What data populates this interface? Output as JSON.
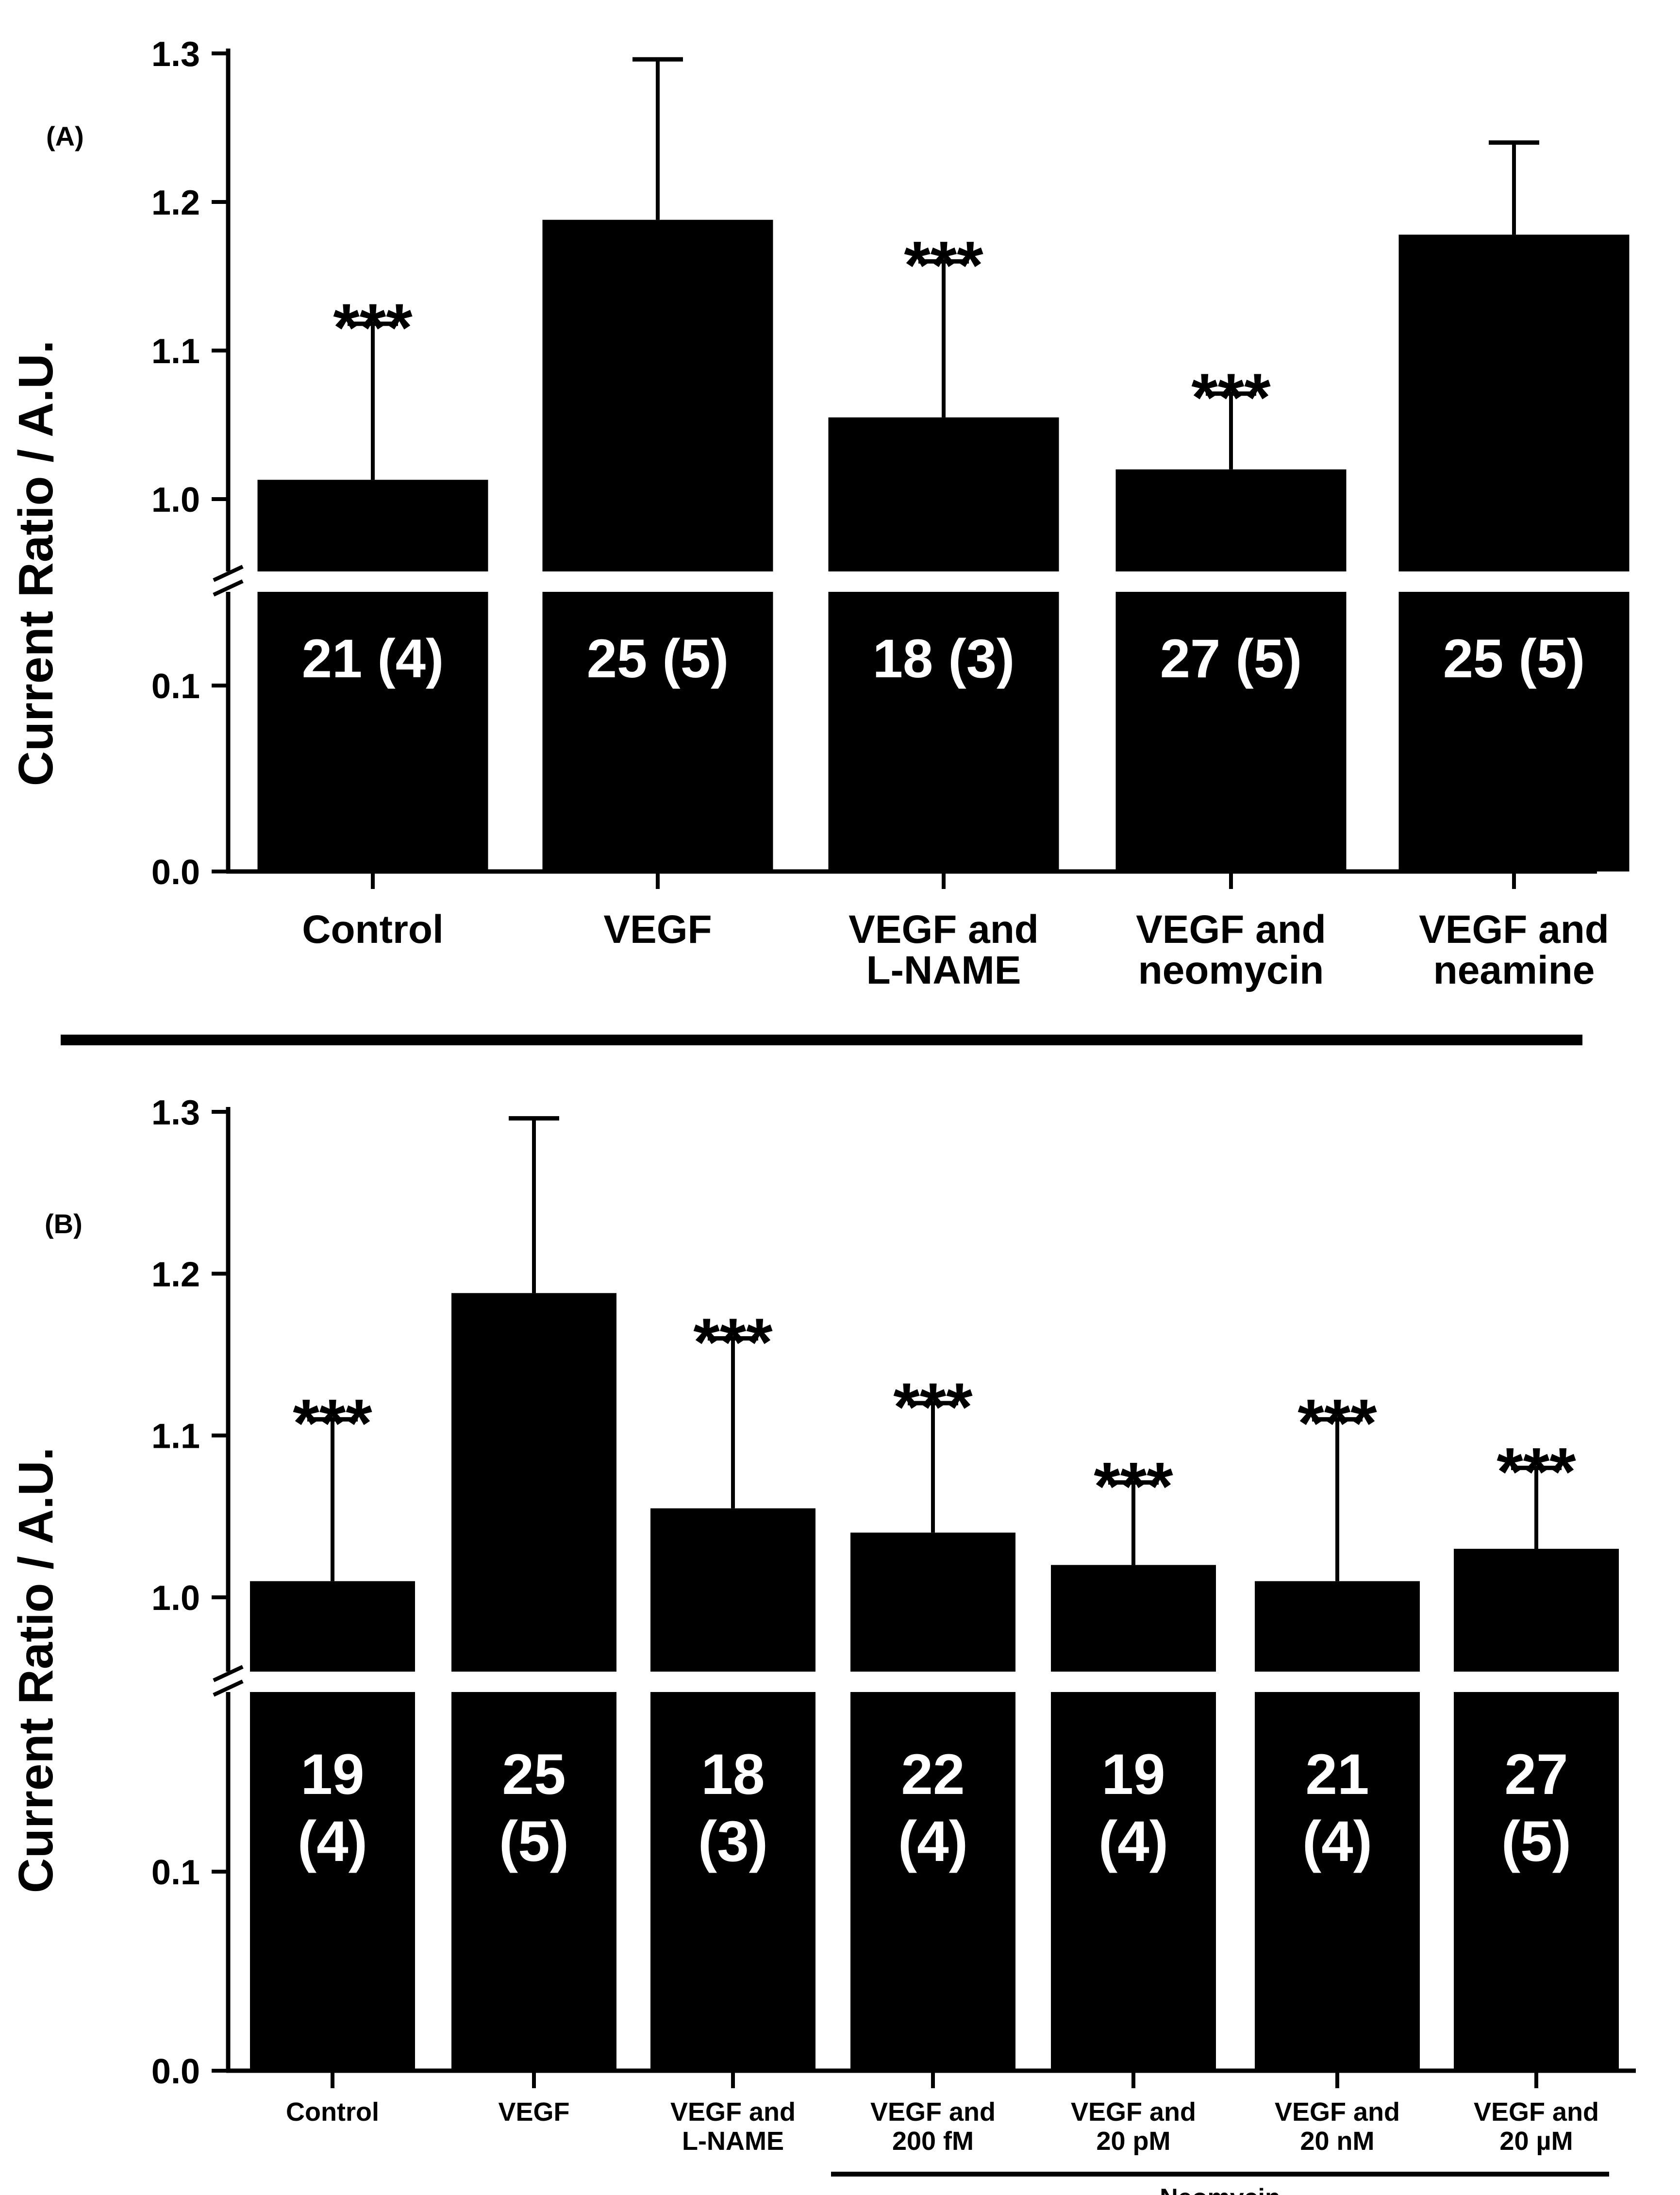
{
  "panel_divider_label": "",
  "chart_data": [
    {
      "type": "bar",
      "panel_label": "(A)",
      "ylabel": "Current Ratio / A.U.",
      "xlabel": "",
      "y_axis": {
        "broken": true,
        "lower_ticks": [
          0.0,
          0.1
        ],
        "upper_ticks": [
          1.0,
          1.1,
          1.2,
          1.3
        ],
        "tick_labels_lower": [
          "0.0",
          "0.1"
        ],
        "tick_labels_upper": [
          "1.0",
          "1.1",
          "1.2",
          "1.3"
        ],
        "lower_range": [
          0.0,
          0.15
        ],
        "upper_range": [
          0.95,
          1.3
        ]
      },
      "categories": [
        [
          "Control"
        ],
        [
          "VEGF"
        ],
        [
          "VEGF and",
          "L-NAME"
        ],
        [
          "VEGF and",
          "neomycin"
        ],
        [
          "VEGF and",
          "neamine"
        ]
      ],
      "values": [
        1.013,
        1.188,
        1.055,
        1.02,
        1.178
      ],
      "error_upper": [
        1.118,
        1.296,
        1.16,
        1.071,
        1.24
      ],
      "n_labels": [
        [
          "21 (4)"
        ],
        [
          "25 (5)"
        ],
        [
          "18 (3)"
        ],
        [
          "27 (5)"
        ],
        [
          "25 (5)"
        ]
      ],
      "significance": [
        "***",
        "",
        "***",
        "***",
        ""
      ],
      "group_brackets": []
    },
    {
      "type": "bar",
      "panel_label": "(B)",
      "ylabel": "Current Ratio / A.U.",
      "xlabel": "",
      "y_axis": {
        "broken": true,
        "lower_ticks": [
          0.0,
          0.1
        ],
        "upper_ticks": [
          1.0,
          1.1,
          1.2,
          1.3
        ],
        "tick_labels_lower": [
          "0.0",
          "0.1"
        ],
        "tick_labels_upper": [
          "1.0",
          "1.1",
          "1.2",
          "1.3"
        ],
        "lower_range": [
          0.0,
          0.15
        ],
        "upper_range": [
          0.95,
          1.3
        ]
      },
      "categories": [
        [
          "Control"
        ],
        [
          "VEGF"
        ],
        [
          "VEGF and",
          "L-NAME"
        ],
        [
          "VEGF and",
          "200 fM"
        ],
        [
          "VEGF and",
          "20 pM"
        ],
        [
          "VEGF and",
          "20 nM"
        ],
        [
          "VEGF and",
          "20 µM"
        ]
      ],
      "values": [
        1.01,
        1.188,
        1.055,
        1.04,
        1.02,
        1.01,
        1.03
      ],
      "error_upper": [
        1.11,
        1.296,
        1.16,
        1.12,
        1.071,
        1.11,
        1.08
      ],
      "n_labels": [
        [
          "19",
          "(4)"
        ],
        [
          "25",
          "(5)"
        ],
        [
          "18",
          "(3)"
        ],
        [
          "22",
          "(4)"
        ],
        [
          "19",
          "(4)"
        ],
        [
          "21",
          "(4)"
        ],
        [
          "27",
          "(5)"
        ]
      ],
      "significance": [
        "***",
        "",
        "***",
        "***",
        "***",
        "***",
        "***"
      ],
      "group_brackets": [
        {
          "label": "Neomycin",
          "from_index": 3,
          "to_index": 6
        }
      ]
    }
  ]
}
